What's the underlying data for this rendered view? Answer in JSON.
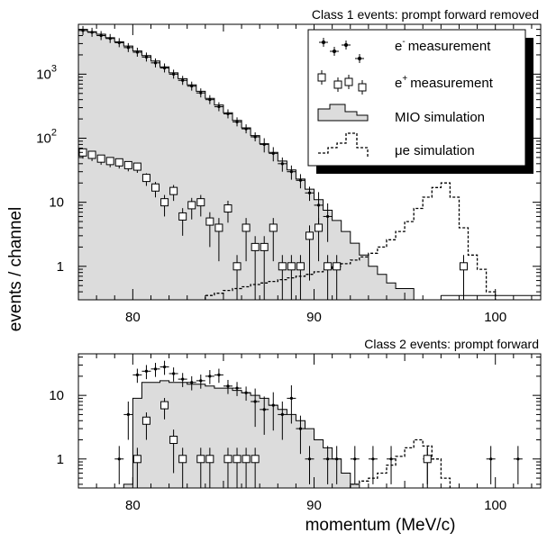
{
  "chart_data": {
    "type": "histogram",
    "y_axis_label": "events / channel",
    "x_axis_label": "momentum  (MeV/c)",
    "legend": [
      {
        "key": "eminus",
        "text": "measurement",
        "prefix": "e",
        "sup": "-"
      },
      {
        "key": "eplus",
        "text": "measurement",
        "prefix": "e",
        "sup": "+"
      },
      {
        "key": "mio",
        "text": "MIO simulation"
      },
      {
        "key": "mue",
        "text": "μe simulation"
      }
    ],
    "panels": [
      {
        "id": "class1",
        "title": "Class 1 events: prompt forward removed",
        "xlim": [
          77,
          102.5
        ],
        "ylim": [
          0.3,
          6000
        ],
        "yscale": "log",
        "yticks": [
          {
            "v": 1,
            "label": "1",
            "sup": ""
          },
          {
            "v": 10,
            "label": "10",
            "sup": ""
          },
          {
            "v": 100,
            "label": "10",
            "sup": "2"
          },
          {
            "v": 1000,
            "label": "10",
            "sup": "3"
          }
        ],
        "xticks": [
          {
            "v": 80,
            "label": "80"
          },
          {
            "v": 90,
            "label": "90"
          },
          {
            "v": 100,
            "label": "100"
          }
        ],
        "mio_bin_width": 0.5,
        "mio_start": 77,
        "mio_values": [
          5000,
          4600,
          4200,
          3700,
          3200,
          2750,
          2300,
          1950,
          1600,
          1300,
          1050,
          850,
          680,
          540,
          420,
          330,
          250,
          190,
          145,
          110,
          82,
          60,
          44,
          32,
          23,
          16,
          11,
          7.5,
          5.2,
          3.5,
          2.3,
          1.5,
          1.0,
          0.75,
          0.55,
          0.45,
          0.45
        ],
        "mue_bin_width": 0.5,
        "mue_start": 84,
        "mue_values": [
          0.35,
          0.38,
          0.42,
          0.45,
          0.48,
          0.52,
          0.55,
          0.58,
          0.62,
          0.66,
          0.7,
          0.75,
          0.82,
          0.9,
          1.0,
          1.1,
          1.25,
          1.4,
          1.6,
          2.0,
          2.6,
          3.5,
          5.0,
          8.0,
          12.0,
          17.0,
          20.0,
          12.0,
          4.0,
          1.5,
          0.9,
          0.4
        ],
        "flat_tail": [
          {
            "x0": 97,
            "x1": 102.5,
            "v": 0.35
          }
        ],
        "eminus": {
          "x": [
            77.25,
            77.75,
            78.25,
            78.75,
            79.25,
            79.75,
            80.25,
            80.75,
            81.25,
            81.75,
            82.25,
            82.75,
            83.25,
            83.75,
            84.25,
            84.75,
            85.25,
            85.75,
            86.25,
            86.75,
            87.25,
            87.75,
            88.25,
            88.75,
            89.25,
            89.75,
            90.25,
            90.75
          ],
          "y": [
            4800,
            4500,
            4000,
            3600,
            3100,
            2600,
            2200,
            1850,
            1500,
            1250,
            1000,
            800,
            650,
            510,
            400,
            310,
            240,
            180,
            140,
            105,
            80,
            58,
            40,
            30,
            22,
            14,
            9,
            6
          ]
        },
        "eplus": {
          "x": [
            77.25,
            77.75,
            78.25,
            78.75,
            79.25,
            79.75,
            80.25,
            80.75,
            81.25,
            81.75,
            82.25,
            82.75,
            83.25,
            83.75,
            84.25,
            84.75,
            85.25,
            85.75,
            86.25,
            86.75,
            87.25,
            87.75,
            88.25,
            88.75,
            89.25,
            89.75,
            90.25,
            90.75,
            91.25,
            98.25
          ],
          "y": [
            60,
            55,
            48,
            44,
            42,
            38,
            36,
            24,
            17,
            10,
            15,
            6,
            9,
            10,
            5,
            4,
            8,
            1,
            4,
            2,
            2,
            4,
            1,
            1,
            1,
            3,
            4,
            1,
            1,
            1
          ],
          "err_lo": [
            0.2,
            0.2,
            0.2,
            0.2,
            0.2,
            0.2,
            0.2,
            0.25,
            0.3,
            0.4,
            0.3,
            0.5,
            0.4,
            0.4,
            0.6,
            0.7,
            0.4,
            1.0,
            0.7,
            1.0,
            1.0,
            0.7,
            1.0,
            1.0,
            1.0,
            0.8,
            0.7,
            1.0,
            1.0,
            1.0
          ],
          "err_hi": [
            0.12,
            0.12,
            0.13,
            0.13,
            0.14,
            0.14,
            0.15,
            0.18,
            0.22,
            0.3,
            0.24,
            0.35,
            0.3,
            0.3,
            0.4,
            0.42,
            0.32,
            0.5,
            0.42,
            0.48,
            0.48,
            0.42,
            0.5,
            0.5,
            0.5,
            0.45,
            0.42,
            0.5,
            0.5,
            0.5
          ]
        }
      },
      {
        "id": "class2",
        "title": "Class 2 events: prompt forward",
        "xlim": [
          77,
          102.5
        ],
        "ylim": [
          0.35,
          45
        ],
        "yscale": "log",
        "yticks": [
          {
            "v": 1,
            "label": "1",
            "sup": ""
          },
          {
            "v": 10,
            "label": "10",
            "sup": ""
          }
        ],
        "xticks": [
          {
            "v": 80,
            "label": "80"
          },
          {
            "v": 90,
            "label": "90"
          },
          {
            "v": 100,
            "label": "100"
          }
        ],
        "mio_bin_width": 0.5,
        "mio_start": 79.5,
        "mio_values": [
          0.4,
          9,
          16,
          16,
          17,
          16,
          16,
          15,
          15,
          14,
          13,
          13,
          12,
          11,
          10,
          9,
          7,
          6,
          5,
          4,
          3,
          2,
          1.5,
          1.0,
          0.6,
          0.4
        ],
        "mue_bin_width": 0.5,
        "mue_start": 92,
        "mue_values": [
          0.4,
          0.45,
          0.5,
          0.6,
          0.8,
          1.1,
          1.5,
          2.0,
          1.6,
          1.0,
          0.5
        ],
        "flat_tail": [],
        "eminus": {
          "x": [
            79.75,
            80.25,
            80.75,
            81.25,
            81.75,
            82.25,
            82.75,
            83.25,
            83.75,
            84.25,
            84.75,
            85.25,
            85.75,
            86.25,
            86.75,
            87.25,
            87.75,
            88.25,
            88.75,
            89.25,
            79.25,
            89.75,
            90.75,
            91.25,
            92.25,
            93.25,
            94.25,
            96.25,
            99.75,
            101.25
          ],
          "y": [
            5,
            21,
            24,
            26,
            28,
            22,
            18,
            16,
            17,
            20,
            21,
            14,
            13,
            11,
            8,
            6,
            7,
            5,
            9,
            3,
            1,
            1,
            1,
            1,
            1,
            1,
            1,
            1,
            1,
            1
          ]
        },
        "eplus": {
          "x": [
            80.25,
            80.75,
            81.75,
            82.25,
            82.75,
            83.75,
            84.25,
            85.25,
            85.75,
            86.25,
            86.75,
            96.25
          ],
          "y": [
            1,
            4,
            7,
            2,
            1,
            1,
            1,
            1,
            1,
            1,
            1,
            1
          ],
          "err_lo": [
            1.0,
            0.5,
            0.4,
            0.7,
            1.0,
            1.0,
            1.0,
            1.0,
            1.0,
            1.0,
            1.0,
            1.0
          ],
          "err_hi": [
            0.5,
            0.35,
            0.3,
            0.45,
            0.5,
            0.5,
            0.5,
            0.5,
            0.5,
            0.5,
            0.5,
            0.5
          ]
        }
      }
    ]
  },
  "colors": {
    "fill": "#dcdcdc",
    "stroke": "#000000",
    "background": "#ffffff",
    "shadow": "#000000"
  }
}
